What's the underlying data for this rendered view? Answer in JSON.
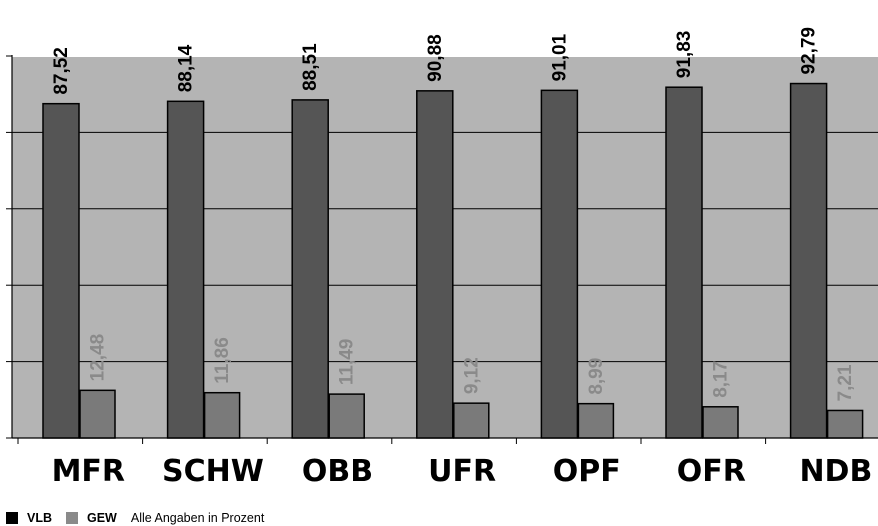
{
  "chart_data": {
    "type": "bar",
    "categories": [
      "MFR",
      "SCHW",
      "OBB",
      "UFR",
      "OPF",
      "OFR",
      "NDB"
    ],
    "series": [
      {
        "name": "VLB",
        "values": [
          87.52,
          88.14,
          88.51,
          90.88,
          91.01,
          91.83,
          92.79
        ],
        "labels": [
          "87,52",
          "88,14",
          "88,51",
          "90,88",
          "91,01",
          "91,83",
          "92,79"
        ],
        "color": "#555555",
        "label_color": "#000000"
      },
      {
        "name": "GEW",
        "values": [
          12.48,
          11.86,
          11.49,
          9.12,
          8.99,
          8.17,
          7.21
        ],
        "labels": [
          "12,48",
          "11,86",
          "11,49",
          "9,12",
          "8,99",
          "8,17",
          "7,21"
        ],
        "color": "#7a7a7a",
        "label_color": "#8a8a8a"
      }
    ],
    "ylim": [
      0,
      100
    ],
    "grid": true,
    "plot_background": "#b4b4b4",
    "legend_position": "bottom-left",
    "note": "Alle Angaben in Prozent"
  }
}
